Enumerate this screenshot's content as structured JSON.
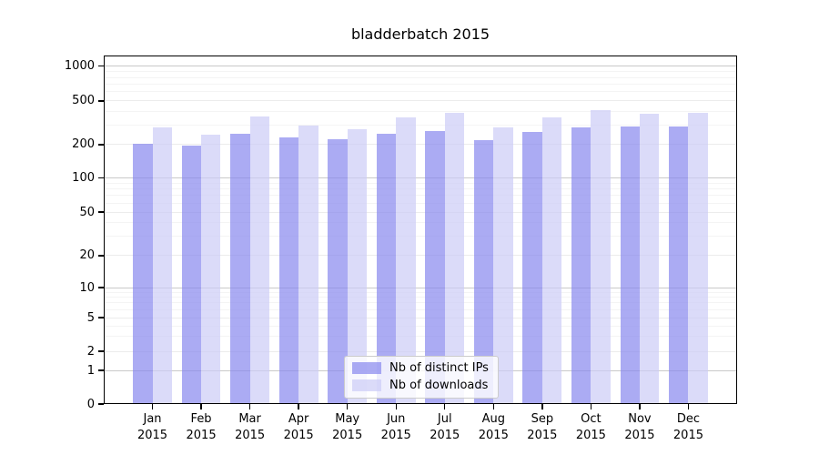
{
  "chart_data": {
    "type": "bar",
    "title": "bladderbatch 2015",
    "categories": [
      "Jan 2015",
      "Feb 2015",
      "Mar 2015",
      "Apr 2015",
      "May 2015",
      "Jun 2015",
      "Jul 2015",
      "Aug 2015",
      "Sep 2015",
      "Oct 2015",
      "Nov 2015",
      "Dec 2015"
    ],
    "series": [
      {
        "name": "Nb of distinct IPs",
        "color": "rgba(136,136,238,0.7)",
        "values": [
          204,
          196,
          251,
          233,
          222,
          251,
          267,
          218,
          262,
          285,
          290,
          290
        ]
      },
      {
        "name": "Nb of downloads",
        "color": "rgba(204,204,246,0.7)",
        "values": [
          289,
          248,
          361,
          296,
          276,
          351,
          387,
          289,
          352,
          413,
          386,
          387
        ]
      }
    ],
    "y_scale": "symlog",
    "y_ticks": [
      0,
      1,
      2,
      5,
      10,
      20,
      50,
      100,
      200,
      500,
      1000
    ],
    "ylim": [
      0,
      1250
    ],
    "xlabel": "",
    "ylabel": "",
    "grid": "horizontal",
    "legend_position": "lower center",
    "colors": {
      "major_gridline": "#c9c9c9",
      "labeled_minor_gridline": "#ececec",
      "minor_gridline": "#f4f4f4",
      "axis": "#000000",
      "background": "#ffffff"
    }
  }
}
